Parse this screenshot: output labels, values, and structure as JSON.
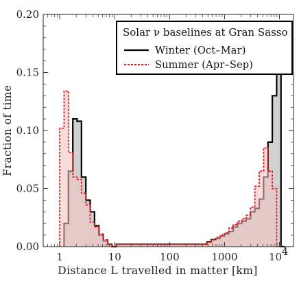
{
  "chart_data": {
    "type": "histogram",
    "title": "",
    "xlabel": "Distance L travelled in matter [km]",
    "ylabel": "Fraction of time",
    "xscale": "log",
    "xlim": [
      0.5,
      18000
    ],
    "ylim": [
      0,
      0.2
    ],
    "x_ticks": [
      "1",
      "10",
      "100",
      "1000",
      "10⁴"
    ],
    "y_ticks": [
      "0.00",
      "0.05",
      "0.10",
      "0.15",
      "0.20"
    ],
    "bin_edges": [
      1.0,
      1.2,
      1.44,
      1.73,
      2.07,
      2.49,
      2.99,
      3.58,
      4.3,
      5.16,
      6.19,
      7.43,
      8.92,
      10.7,
      480,
      576,
      692,
      830,
      996,
      1195,
      1434,
      1721,
      2065,
      2478,
      2973,
      3568,
      4281,
      5137,
      6165,
      7398,
      8877,
      10653,
      12784
    ],
    "series": [
      {
        "name": "Winter (Oct–Mar)",
        "color": "#000000",
        "fill": "#c8c8c8",
        "line_style": "solid",
        "values": [
          0.0,
          0.02,
          0.065,
          0.11,
          0.108,
          0.06,
          0.04,
          0.03,
          0.018,
          0.01,
          0.005,
          0.002,
          0.0,
          0.002,
          0.004,
          0.006,
          0.007,
          0.009,
          0.011,
          0.013,
          0.017,
          0.02,
          0.022,
          0.024,
          0.03,
          0.033,
          0.041,
          0.06,
          0.09,
          0.13,
          0.158,
          0.0
        ]
      },
      {
        "name": "Summer (Apr–Sep)",
        "color": "#ee1111",
        "fill": "#f4c4c4",
        "line_style": "dashed",
        "values": [
          0.102,
          0.134,
          0.081,
          0.06,
          0.058,
          0.046,
          0.036,
          0.021,
          0.017,
          0.011,
          0.006,
          0.002,
          0.0,
          0.002,
          0.004,
          0.006,
          0.008,
          0.01,
          0.012,
          0.016,
          0.019,
          0.022,
          0.024,
          0.027,
          0.034,
          0.052,
          0.065,
          0.085,
          0.065,
          0.05,
          0.0,
          0.0
        ]
      }
    ],
    "legend": {
      "title": "Solar ν baselines at Gran Sasso",
      "placement": "top-right"
    },
    "grid": false
  }
}
